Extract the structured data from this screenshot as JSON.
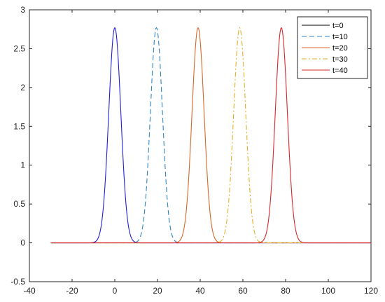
{
  "chart_data": {
    "type": "line",
    "xlim": [
      -40,
      120
    ],
    "ylim": [
      -0.5,
      3
    ],
    "x_ticks": [
      -40,
      -20,
      0,
      20,
      40,
      60,
      80,
      100,
      120
    ],
    "y_ticks": [
      -0.5,
      0,
      0.5,
      1,
      1.5,
      2,
      2.5,
      3
    ],
    "x_tick_labels": [
      "-40",
      "-20",
      "0",
      "20",
      "40",
      "60",
      "80",
      "100",
      "120"
    ],
    "y_tick_labels": [
      "-0.5",
      "0",
      "0.5",
      "1",
      "1.5",
      "2",
      "2.5",
      "3"
    ],
    "grid": false,
    "legend_position": "top-right",
    "x_range_plotted": [
      -30,
      120
    ],
    "series": [
      {
        "name": "t=0",
        "color": "#1f1fd6",
        "dash": "solid",
        "center": 0,
        "peak": 2.77,
        "halfwidth": 4
      },
      {
        "name": "t=10",
        "color": "#2f86c4",
        "dash": "dashed",
        "center": 19.5,
        "peak": 2.77,
        "halfwidth": 4
      },
      {
        "name": "t=20",
        "color": "#d7672a",
        "dash": "solid",
        "center": 39,
        "peak": 2.77,
        "halfwidth": 4
      },
      {
        "name": "t=30",
        "color": "#e6b12a",
        "dash": "dashdot",
        "center": 58.5,
        "peak": 2.77,
        "halfwidth": 4
      },
      {
        "name": "t=40",
        "color": "#d62728",
        "dash": "solid",
        "center": 78,
        "peak": 2.77,
        "halfwidth": 4
      }
    ],
    "legend_line_color": "#000000"
  }
}
